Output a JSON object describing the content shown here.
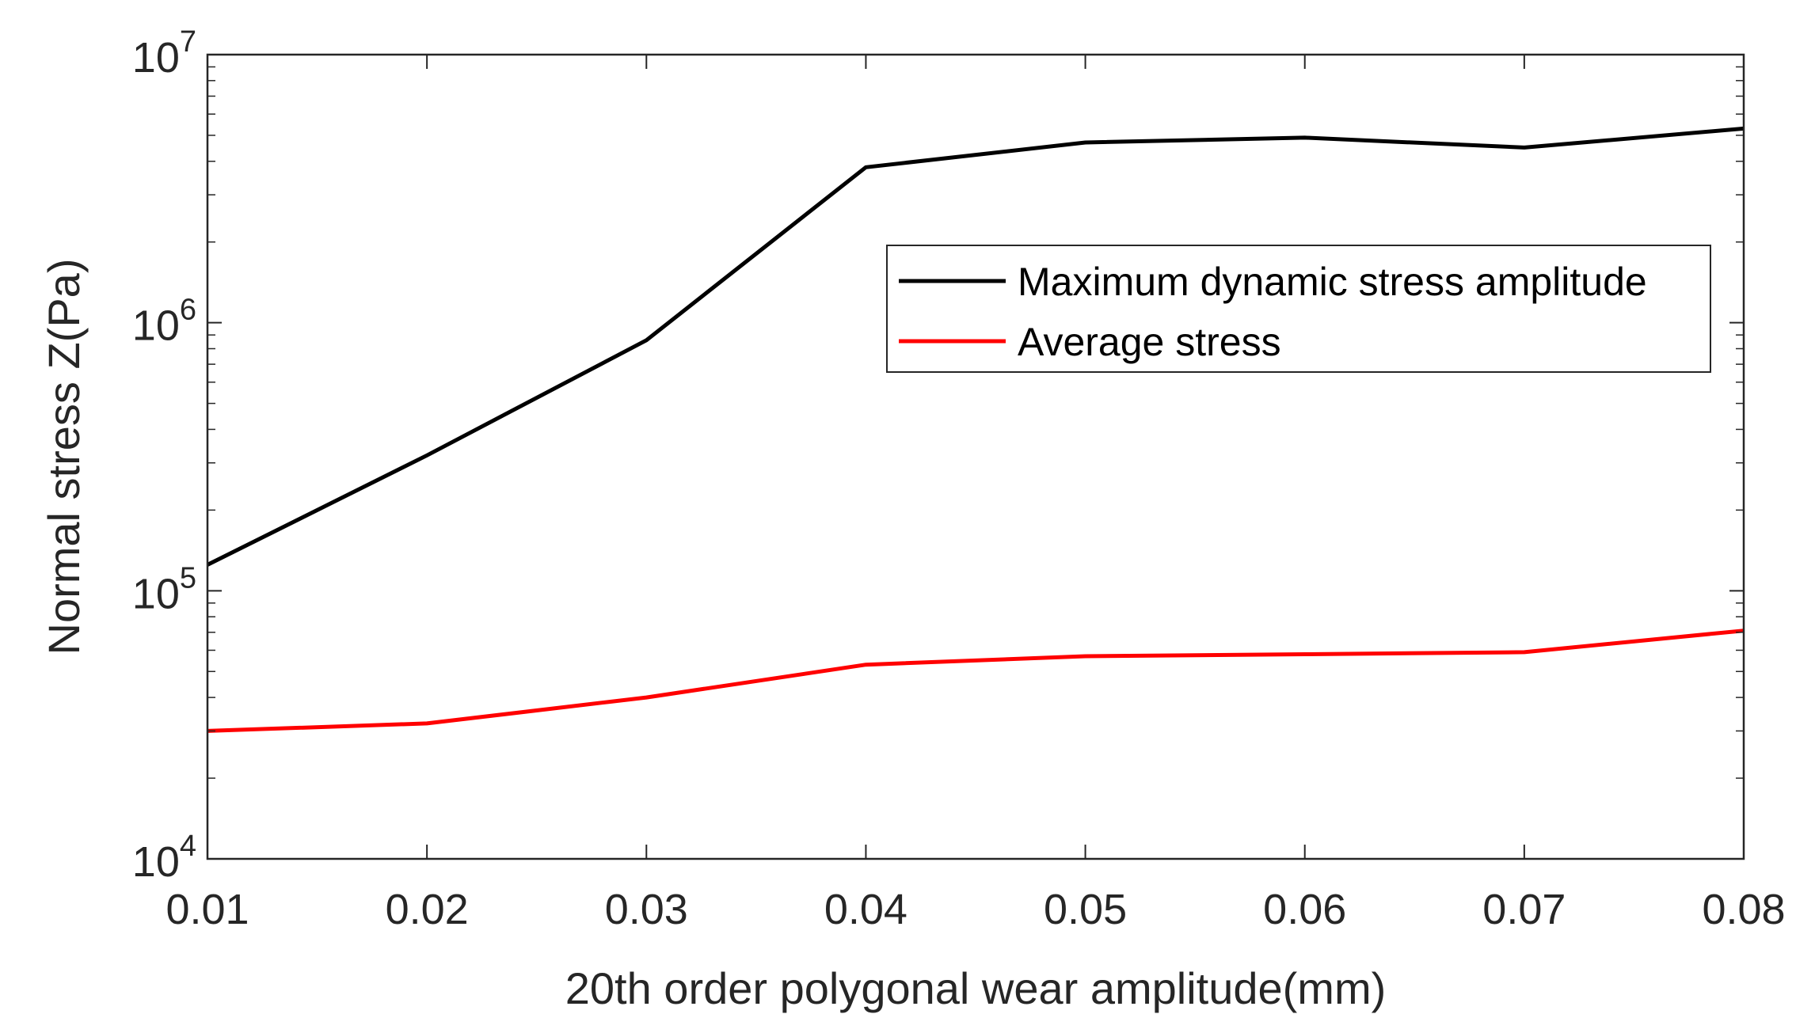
{
  "chart_data": {
    "type": "line",
    "title": "",
    "xlabel": "20th order polygonal wear amplitude(mm)",
    "ylabel": "Normal stress Z(Pa)",
    "yscale": "log",
    "xlim": [
      0.01,
      0.08
    ],
    "ylim": [
      10000,
      10000000
    ],
    "x": [
      0.01,
      0.02,
      0.03,
      0.04,
      0.05,
      0.06,
      0.07,
      0.08
    ],
    "xtick_labels": [
      "0.01",
      "0.02",
      "0.03",
      "0.04",
      "0.05",
      "0.06",
      "0.07",
      "0.08"
    ],
    "ytick_values": [
      10000,
      100000,
      1000000,
      10000000
    ],
    "ytick_labels": [
      {
        "base": "10",
        "exp": "4"
      },
      {
        "base": "10",
        "exp": "5"
      },
      {
        "base": "10",
        "exp": "6"
      },
      {
        "base": "10",
        "exp": "7"
      }
    ],
    "series": [
      {
        "name": "Maximum dynamic stress amplitude",
        "color": "#000000",
        "values": [
          125000,
          320000,
          860000,
          3800000,
          4700000,
          4900000,
          4500000,
          5300000
        ]
      },
      {
        "name": "Average stress",
        "color": "#ff0000",
        "values": [
          30000,
          32000,
          40000,
          53000,
          57000,
          58000,
          59000,
          71000
        ]
      }
    ],
    "legend_position": "upper-right",
    "grid": false
  }
}
